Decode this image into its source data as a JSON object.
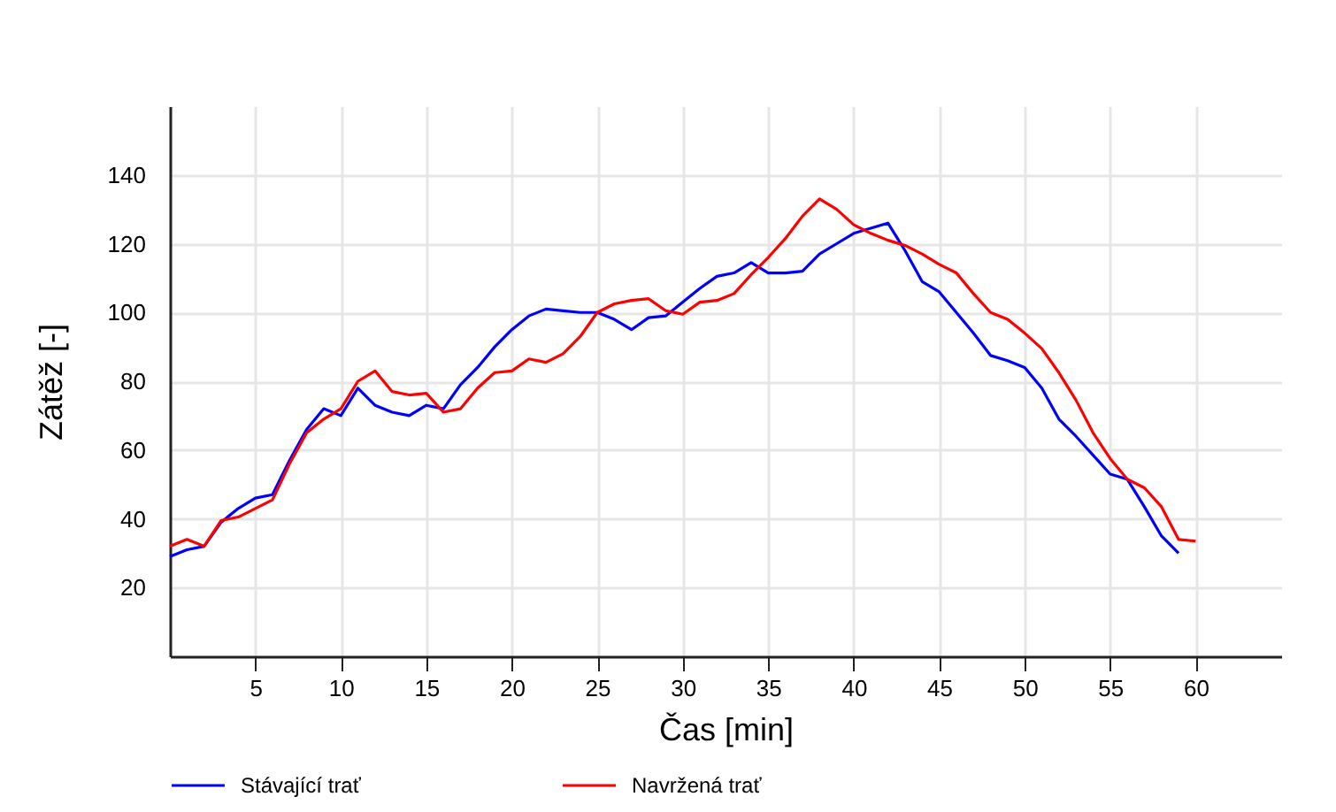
{
  "chart_data": {
    "type": "line",
    "xlabel": "Čas [min]",
    "ylabel": "Zátěž  [-]",
    "xlim": [
      0,
      65
    ],
    "xticks": [
      5,
      10,
      15,
      20,
      25,
      30,
      35,
      40,
      45,
      50,
      55,
      60
    ],
    "ylim": [
      0,
      160
    ],
    "yticks": [
      20,
      40,
      60,
      80,
      100,
      120,
      140
    ],
    "grid": true,
    "legend": "bottom",
    "line_style": "solid",
    "marker": "none",
    "series": [
      {
        "name": "Stávající trať",
        "color": "#0000ff",
        "x": [
          0,
          1,
          2,
          3,
          4,
          5,
          6,
          7,
          8,
          9,
          10,
          11,
          12,
          13,
          14,
          15,
          16,
          17,
          18,
          19,
          20,
          21,
          22,
          23,
          24,
          25,
          26,
          27,
          28,
          29,
          30,
          31,
          32,
          33,
          34,
          35,
          36,
          37,
          38,
          39,
          40,
          41,
          42,
          43,
          44,
          45,
          46,
          47,
          48,
          49,
          50,
          51,
          52,
          53,
          54,
          55,
          56,
          57,
          58,
          59
        ],
        "values": [
          29,
          31,
          32,
          39,
          43,
          46,
          47,
          57,
          66,
          72,
          70,
          78,
          73,
          71,
          70,
          73,
          72,
          79,
          84,
          90,
          95,
          99,
          101,
          100.5,
          100,
          100,
          98,
          95,
          98.5,
          99,
          103,
          107,
          110.5,
          111.5,
          114.5,
          111.5,
          111.5,
          112,
          117,
          120,
          123,
          124.5,
          126,
          118,
          109,
          106,
          100,
          94,
          87.5,
          86,
          84,
          78,
          69,
          64,
          58.5,
          53,
          51.5,
          43.5,
          35,
          30
        ]
      },
      {
        "name": "Navržená trať",
        "color": "#ff0000",
        "x": [
          0,
          1,
          2,
          3,
          4,
          5,
          6,
          7,
          8,
          9,
          10,
          11,
          12,
          13,
          14,
          15,
          16,
          17,
          18,
          19,
          20,
          21,
          22,
          23,
          24,
          25,
          26,
          27,
          28,
          29,
          30,
          31,
          32,
          33,
          34,
          35,
          36,
          37,
          38,
          39,
          40,
          41,
          42,
          43,
          44,
          45,
          46,
          47,
          48,
          49,
          50,
          51,
          52,
          53,
          54,
          55,
          56,
          57,
          58,
          59,
          60
        ],
        "values": [
          32,
          34,
          32,
          39.5,
          40.5,
          43,
          45.5,
          56,
          65,
          69,
          72,
          80,
          83,
          77,
          76,
          76.5,
          71,
          72,
          78,
          82.5,
          83,
          86.5,
          85.5,
          88,
          93,
          100,
          102.5,
          103.5,
          104,
          100.5,
          99.5,
          103,
          103.5,
          105.5,
          111,
          116,
          121.5,
          128,
          133,
          130,
          125.5,
          123,
          121,
          119.5,
          117,
          114,
          111.5,
          105.5,
          100,
          98,
          94,
          89.5,
          82.5,
          74.5,
          65,
          57.5,
          51.5,
          49,
          43.5,
          34,
          33.5
        ]
      }
    ]
  }
}
